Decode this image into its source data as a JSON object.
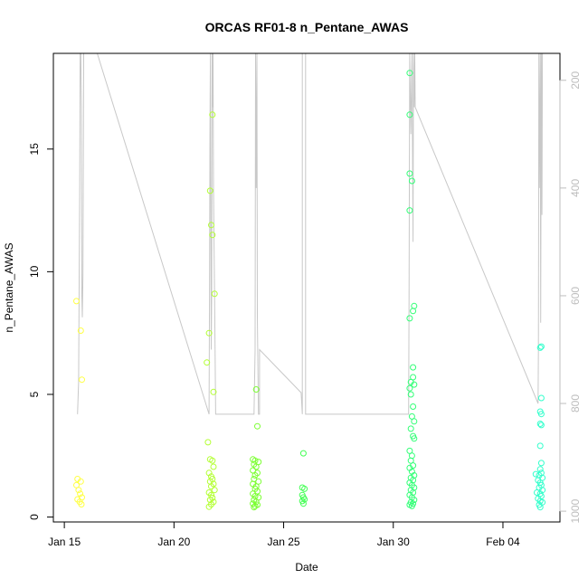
{
  "chart_data": {
    "type": "scatter",
    "title": "ORCAS RF01-8 n_Pentane_AWAS",
    "xlabel": "Date",
    "ylabel": "n_Pentane_AWAS",
    "x_ticks": [
      {
        "day": 0,
        "label": "Jan 15"
      },
      {
        "day": 5,
        "label": "Jan 20"
      },
      {
        "day": 10,
        "label": "Jan 25"
      },
      {
        "day": 15,
        "label": "Jan 30"
      },
      {
        "day": 20,
        "label": "Feb 04"
      }
    ],
    "xlim_days": [
      -0.5,
      22.6
    ],
    "ylim": [
      -0.2,
      18.9
    ],
    "y_ticks": [
      0,
      5,
      10,
      15
    ],
    "secondary_axis": {
      "label": "",
      "reversed": true,
      "range": [
        150,
        1020
      ],
      "ticks": [
        200,
        400,
        600,
        800,
        1000
      ],
      "color": "#bdbdbd"
    },
    "series": [
      {
        "color": "#ffff44",
        "points": [
          [
            0.55,
            8.8
          ],
          [
            0.75,
            7.6
          ],
          [
            0.8,
            5.6
          ],
          [
            0.6,
            1.55
          ],
          [
            0.75,
            1.45
          ],
          [
            0.55,
            1.3
          ],
          [
            0.65,
            1.1
          ],
          [
            0.72,
            0.95
          ],
          [
            0.8,
            0.8
          ],
          [
            0.6,
            0.72
          ],
          [
            0.7,
            0.62
          ],
          [
            0.78,
            0.52
          ]
        ]
      },
      {
        "color": "#b3ff33",
        "points": [
          [
            6.75,
            16.4
          ],
          [
            6.65,
            13.3
          ],
          [
            6.7,
            11.9
          ],
          [
            6.75,
            11.5
          ],
          [
            6.85,
            9.1
          ],
          [
            6.6,
            7.5
          ],
          [
            6.5,
            6.3
          ],
          [
            6.8,
            5.1
          ],
          [
            6.55,
            3.05
          ],
          [
            6.65,
            2.35
          ],
          [
            6.75,
            2.3
          ],
          [
            6.8,
            2.05
          ],
          [
            6.6,
            1.8
          ],
          [
            6.7,
            1.65
          ],
          [
            6.75,
            1.55
          ],
          [
            6.65,
            1.45
          ],
          [
            6.8,
            1.35
          ],
          [
            6.7,
            1.25
          ],
          [
            6.85,
            1.1
          ],
          [
            6.6,
            1.0
          ],
          [
            6.7,
            0.9
          ],
          [
            6.75,
            0.78
          ],
          [
            6.65,
            0.7
          ],
          [
            6.8,
            0.62
          ],
          [
            6.7,
            0.52
          ],
          [
            6.6,
            0.42
          ]
        ]
      },
      {
        "color": "#7cff33",
        "points": [
          [
            8.75,
            5.2
          ],
          [
            8.8,
            3.7
          ],
          [
            8.6,
            2.35
          ],
          [
            8.7,
            2.3
          ],
          [
            8.85,
            2.25
          ],
          [
            8.65,
            2.15
          ],
          [
            8.75,
            2.05
          ],
          [
            8.6,
            1.9
          ],
          [
            8.8,
            1.8
          ],
          [
            8.7,
            1.7
          ],
          [
            8.65,
            1.55
          ],
          [
            8.85,
            1.45
          ],
          [
            8.6,
            1.35
          ],
          [
            8.75,
            1.25
          ],
          [
            8.7,
            1.15
          ],
          [
            8.8,
            1.05
          ],
          [
            8.6,
            0.95
          ],
          [
            8.7,
            0.85
          ],
          [
            8.85,
            0.8
          ],
          [
            8.65,
            0.7
          ],
          [
            8.75,
            0.62
          ],
          [
            8.6,
            0.55
          ],
          [
            8.8,
            0.5
          ],
          [
            8.7,
            0.45
          ],
          [
            8.65,
            0.4
          ]
        ]
      },
      {
        "color": "#44ff55",
        "points": [
          [
            10.9,
            2.6
          ],
          [
            10.85,
            1.2
          ],
          [
            10.95,
            1.15
          ],
          [
            10.85,
            0.9
          ],
          [
            10.9,
            0.8
          ],
          [
            10.95,
            0.72
          ],
          [
            10.85,
            0.65
          ],
          [
            10.9,
            0.55
          ]
        ]
      },
      {
        "color": "#33ff77",
        "points": [
          [
            15.75,
            18.1
          ],
          [
            15.75,
            16.4
          ],
          [
            15.75,
            14.0
          ],
          [
            15.85,
            13.7
          ],
          [
            15.75,
            12.5
          ],
          [
            15.95,
            8.6
          ],
          [
            15.9,
            8.4
          ],
          [
            15.75,
            8.1
          ],
          [
            15.9,
            6.1
          ],
          [
            15.9,
            5.7
          ],
          [
            15.8,
            5.5
          ],
          [
            15.95,
            5.4
          ],
          [
            15.75,
            5.25
          ],
          [
            15.8,
            5.0
          ],
          [
            15.9,
            4.5
          ],
          [
            15.85,
            4.1
          ],
          [
            15.95,
            3.9
          ],
          [
            15.8,
            3.6
          ],
          [
            15.9,
            3.3
          ],
          [
            15.95,
            3.2
          ],
          [
            15.75,
            2.7
          ],
          [
            15.85,
            2.5
          ],
          [
            15.8,
            2.3
          ],
          [
            15.9,
            2.1
          ],
          [
            15.75,
            2.0
          ],
          [
            15.85,
            1.85
          ],
          [
            15.95,
            1.7
          ],
          [
            15.8,
            1.6
          ],
          [
            15.9,
            1.5
          ],
          [
            15.75,
            1.4
          ],
          [
            15.85,
            1.3
          ],
          [
            15.95,
            1.2
          ],
          [
            15.8,
            1.1
          ],
          [
            15.9,
            1.0
          ],
          [
            15.75,
            0.9
          ],
          [
            15.85,
            0.8
          ],
          [
            15.95,
            0.7
          ],
          [
            15.8,
            0.6
          ],
          [
            15.9,
            0.55
          ],
          [
            15.75,
            0.5
          ],
          [
            15.85,
            0.45
          ]
        ]
      },
      {
        "color": "#33ffcc",
        "points": [
          [
            21.75,
            6.95
          ],
          [
            21.7,
            6.9
          ],
          [
            21.75,
            4.85
          ],
          [
            21.7,
            4.3
          ],
          [
            21.75,
            4.2
          ],
          [
            21.7,
            3.8
          ],
          [
            21.75,
            3.75
          ],
          [
            21.7,
            2.9
          ],
          [
            21.75,
            2.2
          ],
          [
            21.7,
            1.95
          ],
          [
            21.75,
            1.8
          ],
          [
            21.5,
            1.75
          ],
          [
            21.65,
            1.7
          ],
          [
            21.8,
            1.6
          ],
          [
            21.6,
            1.5
          ],
          [
            21.7,
            1.4
          ],
          [
            21.75,
            1.3
          ],
          [
            21.65,
            1.2
          ],
          [
            21.8,
            1.1
          ],
          [
            21.55,
            1.0
          ],
          [
            21.7,
            0.95
          ],
          [
            21.75,
            0.85
          ],
          [
            21.6,
            0.75
          ],
          [
            21.7,
            0.65
          ],
          [
            21.8,
            0.6
          ],
          [
            21.65,
            0.5
          ],
          [
            21.7,
            0.4
          ]
        ]
      }
    ],
    "altitude_trace": {
      "color": "#c8c8c8",
      "points": [
        [
          0.6,
          820
        ],
        [
          0.65,
          760
        ],
        [
          0.7,
          400
        ],
        [
          0.72,
          150
        ],
        [
          0.75,
          150
        ],
        [
          0.78,
          250
        ],
        [
          0.8,
          600
        ],
        [
          0.82,
          640
        ],
        [
          0.85,
          560
        ],
        [
          0.88,
          150
        ],
        [
          0.9,
          150
        ],
        [
          1.5,
          150
        ],
        [
          6.6,
          820
        ],
        [
          6.62,
          600
        ],
        [
          6.64,
          300
        ],
        [
          6.66,
          150
        ],
        [
          6.68,
          500
        ],
        [
          6.7,
          700
        ],
        [
          6.72,
          600
        ],
        [
          6.74,
          150
        ],
        [
          6.76,
          250
        ],
        [
          6.78,
          150
        ],
        [
          6.8,
          400
        ],
        [
          6.85,
          600
        ],
        [
          6.9,
          820
        ],
        [
          8.65,
          820
        ],
        [
          8.7,
          700
        ],
        [
          8.72,
          150
        ],
        [
          8.75,
          400
        ],
        [
          8.78,
          150
        ],
        [
          8.8,
          640
        ],
        [
          8.85,
          820
        ],
        [
          8.9,
          820
        ],
        [
          8.9,
          700
        ],
        [
          10.8,
          780
        ],
        [
          10.85,
          820
        ],
        [
          10.85,
          150
        ],
        [
          11.0,
          150
        ],
        [
          11.0,
          820
        ],
        [
          15.7,
          820
        ],
        [
          15.72,
          600
        ],
        [
          15.75,
          150
        ],
        [
          15.8,
          300
        ],
        [
          15.85,
          150
        ],
        [
          15.9,
          500
        ],
        [
          15.92,
          150
        ],
        [
          15.95,
          250
        ],
        [
          15.98,
          150
        ],
        [
          16.0,
          250
        ],
        [
          21.6,
          800
        ],
        [
          21.62,
          700
        ],
        [
          21.64,
          150
        ],
        [
          21.66,
          400
        ],
        [
          21.7,
          150
        ],
        [
          21.72,
          650
        ],
        [
          21.75,
          150
        ],
        [
          21.78,
          450
        ],
        [
          21.8,
          150
        ]
      ]
    }
  }
}
